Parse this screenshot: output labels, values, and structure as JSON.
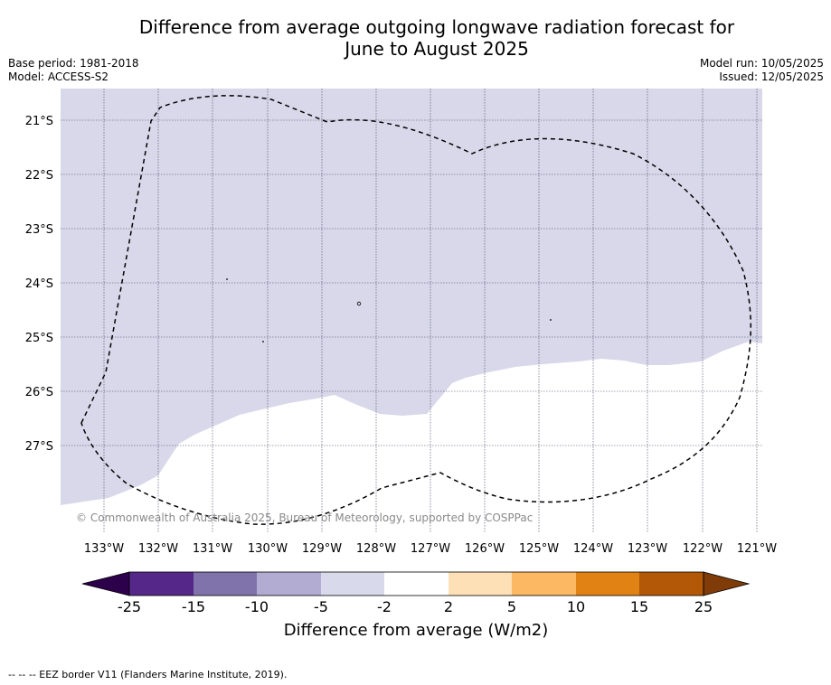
{
  "header": {
    "title_line1": "Difference from average outgoing longwave radiation forecast for",
    "title_line2": "June to August 2025",
    "base_period": "Base period: 1981-2018",
    "model": "Model: ACCESS-S2",
    "model_run": "Model run: 10/05/2025",
    "issued": "Issued: 12/05/2025"
  },
  "map": {
    "latitude_labels": [
      "21°S",
      "22°S",
      "23°S",
      "24°S",
      "25°S",
      "26°S",
      "27°S"
    ],
    "longitude_labels": [
      "133°W",
      "132°W",
      "131°W",
      "130°W",
      "129°W",
      "128°W",
      "127°W",
      "126°W",
      "125°W",
      "124°W",
      "123°W",
      "122°W",
      "121°W"
    ],
    "copyright": "© Commonwealth of Australia 2025, Bureau of Meteorology, supported by COSPPac",
    "colors": {
      "band_neg5_neg2": "#d8d8ea",
      "band_neg2_2": "#ffffff",
      "gridline": "#444466",
      "eez_border": "#000000"
    }
  },
  "colorbar": {
    "ticks": [
      "-25",
      "-15",
      "-10",
      "-5",
      "-2",
      "2",
      "5",
      "10",
      "15",
      "25"
    ],
    "label": "Difference from average (W/m2)",
    "colors": {
      "under": "#2d004b",
      "bins": [
        "#542788",
        "#8073ac",
        "#b2abd2",
        "#d8daeb",
        "#ffffff",
        "#fee0b6",
        "#fdb863",
        "#e08214",
        "#b35806"
      ],
      "over": "#7f3b08"
    }
  },
  "footer": {
    "note": "--  --  -- EEZ border V11 (Flanders Marine Institute, 2019)."
  }
}
